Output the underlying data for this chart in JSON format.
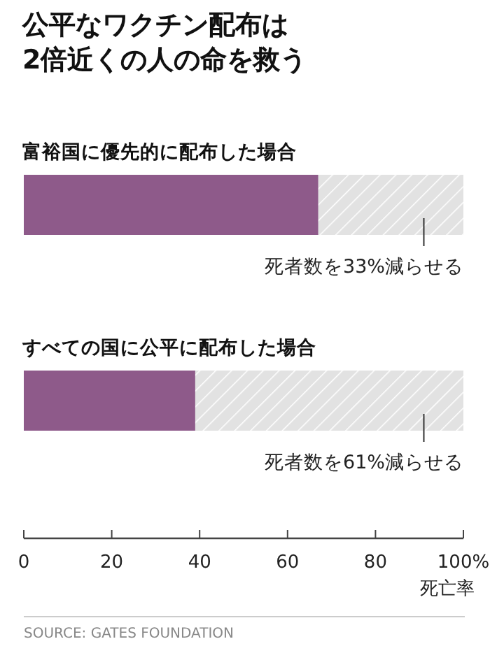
{
  "chart_data": {
    "type": "bar",
    "orientation": "horizontal",
    "stacked": true,
    "title": "公平なワクチン配布は\n2倍近くの人の命を救う",
    "categories": [
      "富裕国に優先的に配布した場合",
      "すべての国に公平に配布した場合"
    ],
    "series": [
      {
        "color": "#8e5a8a",
        "values": [
          67,
          39
        ]
      },
      {
        "color": "#e2e2e2",
        "values": [
          33,
          61
        ]
      }
    ],
    "xlim": [
      0,
      100
    ],
    "xticks": [
      0,
      20,
      40,
      60,
      80,
      {
        "value": 100,
        "label": "100%"
      }
    ],
    "xlabel": "死亡率",
    "grid": false,
    "annotations": [
      {
        "text": "死者数を33%減らせる",
        "x": 91,
        "y": "富裕国に優先的に配布した場合"
      },
      {
        "text": "死者数を61%減らせる",
        "x": 91,
        "y": "すべての国に公平に配布した場合"
      },
      "SOURCE: GATES FOUNDATION"
    ]
  }
}
